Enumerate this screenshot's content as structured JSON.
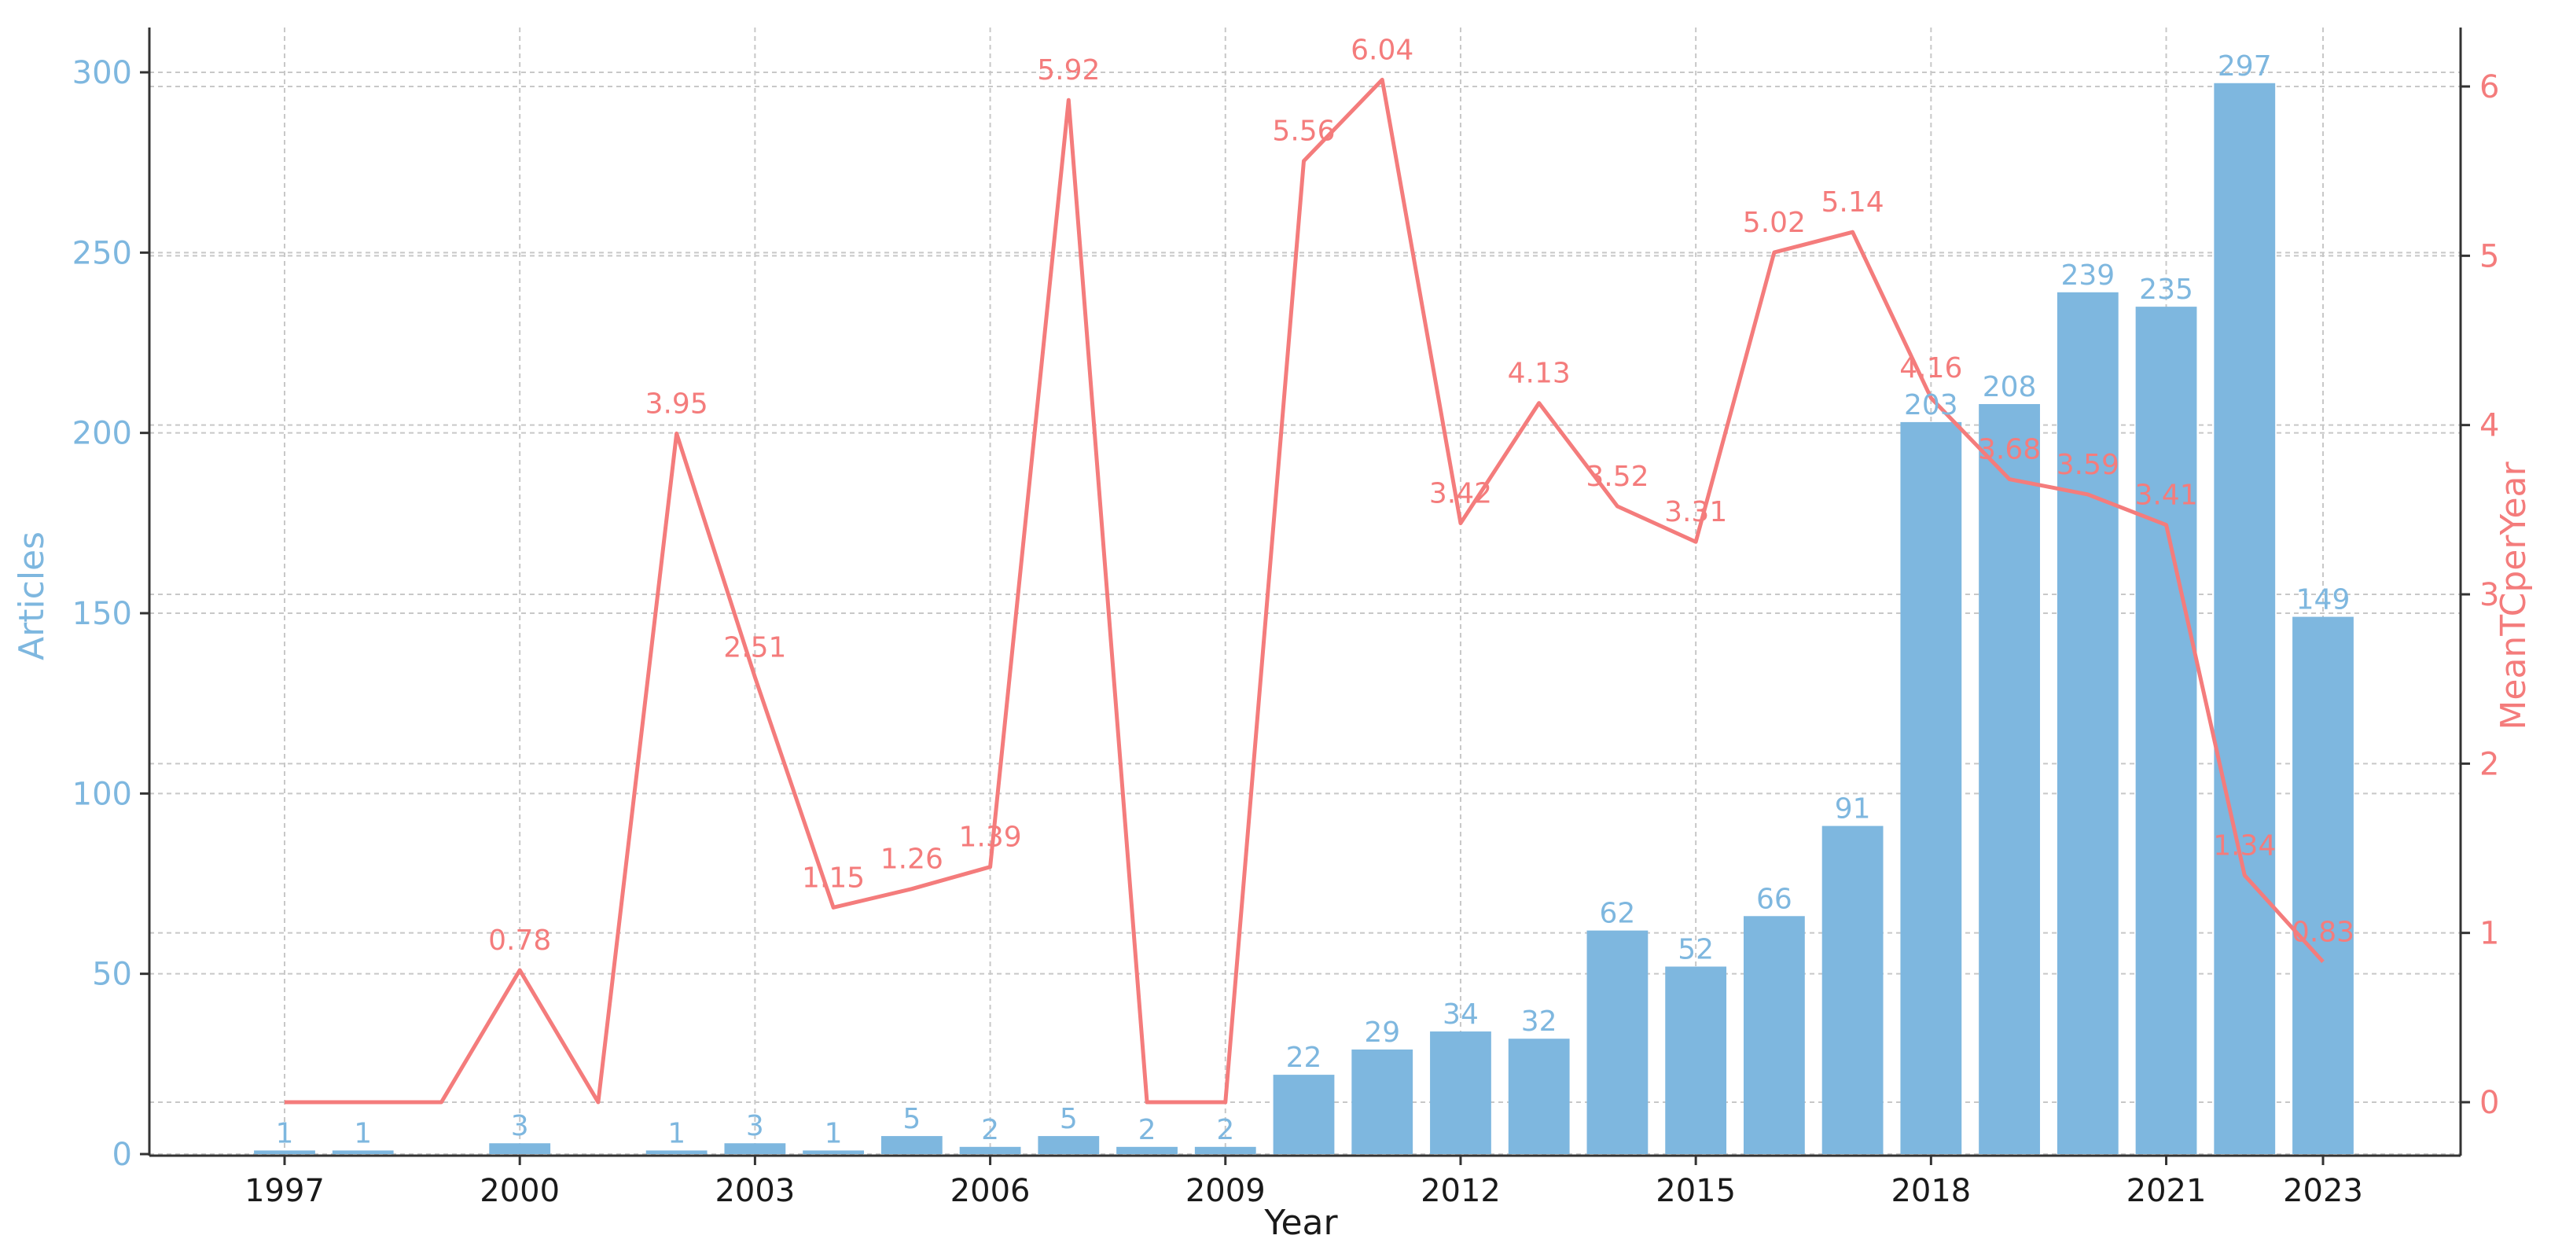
{
  "chart_data": {
    "type": "bar",
    "years": [
      1997,
      1998,
      1999,
      2000,
      2001,
      2002,
      2003,
      2004,
      2005,
      2006,
      2007,
      2008,
      2009,
      2010,
      2011,
      2012,
      2013,
      2014,
      2015,
      2016,
      2017,
      2018,
      2019,
      2020,
      2021,
      2022,
      2023
    ],
    "series": [
      {
        "type": "bar",
        "name": "Articles",
        "axis": "left",
        "color": "#7EB7DF",
        "points": [
          [
            1997,
            1
          ],
          [
            1998,
            1
          ],
          [
            2000,
            3
          ],
          [
            2002,
            1
          ],
          [
            2003,
            3
          ],
          [
            2004,
            1
          ],
          [
            2005,
            5
          ],
          [
            2006,
            2
          ],
          [
            2007,
            5
          ],
          [
            2008,
            2
          ],
          [
            2009,
            2
          ],
          [
            2010,
            22
          ],
          [
            2011,
            29
          ],
          [
            2012,
            34
          ],
          [
            2013,
            32
          ],
          [
            2014,
            62
          ],
          [
            2015,
            52
          ],
          [
            2016,
            66
          ],
          [
            2017,
            91
          ],
          [
            2018,
            203
          ],
          [
            2019,
            208
          ],
          [
            2020,
            239
          ],
          [
            2021,
            235
          ],
          [
            2022,
            297
          ],
          [
            2023,
            149
          ]
        ],
        "labels": [
          "1",
          "1",
          "3",
          "1",
          "3",
          "1",
          "5",
          "2",
          "5",
          "2",
          "2",
          "22",
          "29",
          "34",
          "32",
          "62",
          "52",
          "66",
          "91",
          "203",
          "208",
          "239",
          "235",
          "297",
          "149"
        ]
      },
      {
        "type": "line",
        "name": "MeanTCperYear",
        "axis": "right",
        "color": "#F47C7C",
        "points": [
          [
            1997,
            0
          ],
          [
            1998,
            0
          ],
          [
            1999,
            0
          ],
          [
            2000,
            0.78
          ],
          [
            2001,
            0
          ],
          [
            2002,
            3.95
          ],
          [
            2003,
            2.51
          ],
          [
            2004,
            1.15
          ],
          [
            2005,
            1.26
          ],
          [
            2006,
            1.39
          ],
          [
            2007,
            5.92
          ],
          [
            2008,
            0
          ],
          [
            2009,
            0
          ],
          [
            2010,
            5.56
          ],
          [
            2011,
            6.04
          ],
          [
            2012,
            3.42
          ],
          [
            2013,
            4.13
          ],
          [
            2014,
            3.52
          ],
          [
            2015,
            3.31
          ],
          [
            2016,
            5.02
          ],
          [
            2017,
            5.14
          ],
          [
            2018,
            4.16
          ],
          [
            2019,
            3.68
          ],
          [
            2020,
            3.59
          ],
          [
            2021,
            3.41
          ],
          [
            2022,
            1.34
          ],
          [
            2023,
            0.83
          ]
        ],
        "labels": {
          "2000": "0.78",
          "2002": "3.95",
          "2003": "2.51",
          "2004": "1.15",
          "2005": "1.26",
          "2006": "1.39",
          "2007": "5.92",
          "2010": "5.56",
          "2011": "6.04",
          "2012": "3.42",
          "2013": "4.13",
          "2014": "3.52",
          "2015": "3.31",
          "2016": "5.02",
          "2017": "5.14",
          "2018": "4.16",
          "2019": "3.68",
          "2020": "3.59",
          "2021": "3.41",
          "2022": "1.34",
          "2023": "0.83"
        }
      }
    ],
    "xlabel": "Year",
    "ylabel_left": "Articles",
    "ylabel_right": "MeanTCperYear",
    "ylim_left": [
      0,
      300
    ],
    "ylim_right": [
      0,
      6
    ],
    "x_ticks": [
      1997,
      2000,
      2003,
      2006,
      2009,
      2012,
      2015,
      2018,
      2021,
      2023
    ],
    "y_ticks_left": [
      0,
      50,
      100,
      150,
      200,
      250,
      300
    ],
    "y_ticks_right": [
      0,
      1,
      2,
      3,
      4,
      5,
      6
    ],
    "grid": true
  }
}
